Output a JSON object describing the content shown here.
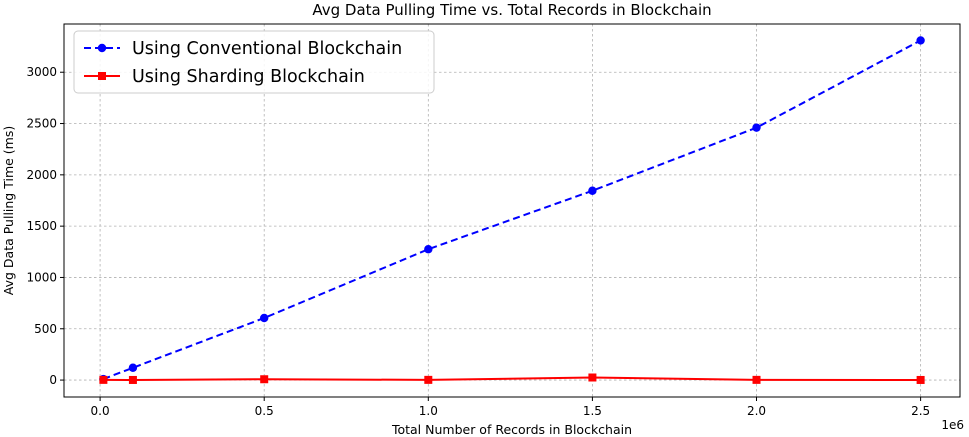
{
  "chart_data": {
    "type": "line",
    "title": "Avg Data Pulling Time vs. Total Records in Blockchain",
    "xlabel": "Total Number of Records in Blockchain",
    "ylabel": "Avg Data Pulling Time (ms)",
    "x_offset_label": "1e6",
    "x_ticks": [
      0.0,
      0.5,
      1.0,
      1.5,
      2.0,
      2.5
    ],
    "x_tick_labels": [
      "0.0",
      "0.5",
      "1.0",
      "1.5",
      "2.0",
      "2.5"
    ],
    "y_ticks": [
      0,
      500,
      1000,
      1500,
      2000,
      2500,
      3000
    ],
    "y_tick_labels": [
      "0",
      "500",
      "1000",
      "1500",
      "2000",
      "2500",
      "3000"
    ],
    "xlim": [
      -0.11,
      2.62
    ],
    "ylim": [
      -165,
      3470
    ],
    "grid": true,
    "legend_position": "top-left",
    "x": [
      0.01,
      0.1,
      0.5,
      1.0,
      1.5,
      2.0,
      2.5
    ],
    "series": [
      {
        "name": "Using Conventional Blockchain",
        "values": [
          10,
          120,
          605,
          1275,
          1845,
          2460,
          3310
        ],
        "color": "#0000ff",
        "line_style": "dashed",
        "marker": "circle"
      },
      {
        "name": "Using Sharding Blockchain",
        "values": [
          2,
          1,
          8,
          2,
          25,
          2,
          1
        ],
        "color": "#ff0000",
        "line_style": "solid",
        "marker": "square"
      }
    ]
  }
}
